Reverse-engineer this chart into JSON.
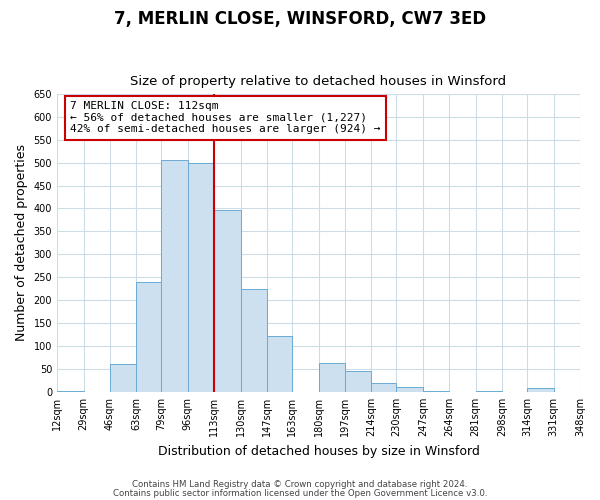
{
  "title": "7, MERLIN CLOSE, WINSFORD, CW7 3ED",
  "subtitle": "Size of property relative to detached houses in Winsford",
  "xlabel": "Distribution of detached houses by size in Winsford",
  "ylabel": "Number of detached properties",
  "bar_color": "#cce0f0",
  "bar_edge_color": "#6aaad4",
  "bins": [
    12,
    29,
    46,
    63,
    79,
    96,
    113,
    130,
    147,
    163,
    180,
    197,
    214,
    230,
    247,
    264,
    281,
    298,
    314,
    331,
    348
  ],
  "values": [
    3,
    0,
    60,
    240,
    505,
    500,
    397,
    225,
    122,
    0,
    63,
    45,
    20,
    10,
    3,
    0,
    3,
    0,
    8,
    0
  ],
  "bin_labels": [
    "12sqm",
    "29sqm",
    "46sqm",
    "63sqm",
    "79sqm",
    "96sqm",
    "113sqm",
    "130sqm",
    "147sqm",
    "163sqm",
    "180sqm",
    "197sqm",
    "214sqm",
    "230sqm",
    "247sqm",
    "264sqm",
    "281sqm",
    "298sqm",
    "314sqm",
    "331sqm",
    "348sqm"
  ],
  "property_line_x": 113,
  "property_line_color": "#cc0000",
  "annotation_text": "7 MERLIN CLOSE: 112sqm\n← 56% of detached houses are smaller (1,227)\n42% of semi-detached houses are larger (924) →",
  "annotation_box_color": "#ffffff",
  "annotation_box_edge": "#cc0000",
  "ylim": [
    0,
    650
  ],
  "yticks": [
    0,
    50,
    100,
    150,
    200,
    250,
    300,
    350,
    400,
    450,
    500,
    550,
    600,
    650
  ],
  "footnote1": "Contains HM Land Registry data © Crown copyright and database right 2024.",
  "footnote2": "Contains public sector information licensed under the Open Government Licence v3.0.",
  "title_fontsize": 12,
  "subtitle_fontsize": 9.5,
  "label_fontsize": 9,
  "tick_fontsize": 7,
  "background_color": "#ffffff",
  "grid_color": "#ccdde8",
  "fig_width": 6.0,
  "fig_height": 5.0,
  "dpi": 100
}
